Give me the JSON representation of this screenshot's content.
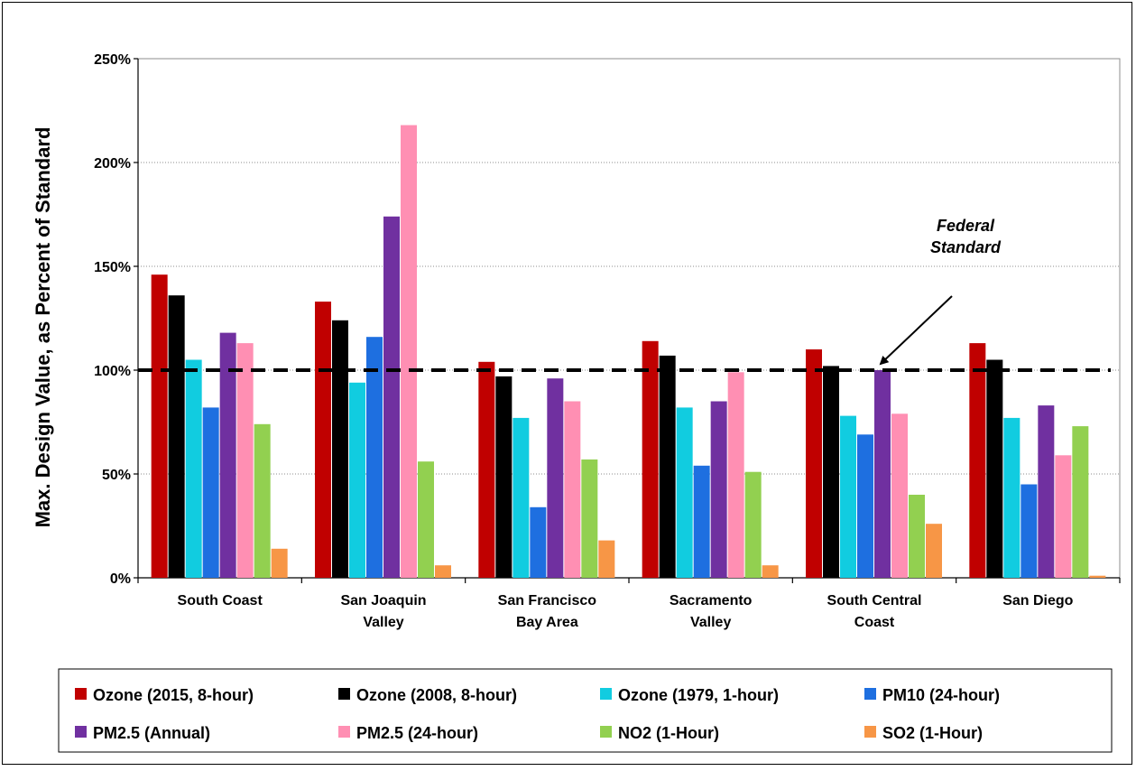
{
  "chart_data": {
    "type": "bar",
    "ylabel": "Max. Design Value, as Percent of Standard",
    "ylim": [
      0,
      250
    ],
    "yticks": [
      "0%",
      "50%",
      "100%",
      "150%",
      "200%",
      "250%"
    ],
    "ytick_values": [
      0,
      50,
      100,
      150,
      200,
      250
    ],
    "grid": true,
    "legend_position": "bottom",
    "categories": [
      [
        "South Coast"
      ],
      [
        "San Joaquin",
        "Valley"
      ],
      [
        "San Francisco",
        "Bay Area"
      ],
      [
        "Sacramento",
        "Valley"
      ],
      [
        "South Central",
        "Coast"
      ],
      [
        "San Diego"
      ]
    ],
    "series": [
      {
        "name": "Ozone (2015, 8-hour)",
        "color": "#C00000",
        "values": [
          146,
          133,
          104,
          114,
          110,
          113
        ]
      },
      {
        "name": "Ozone (2008, 8-hour)",
        "color": "#000000",
        "values": [
          136,
          124,
          97,
          107,
          102,
          105
        ]
      },
      {
        "name": "Ozone (1979, 1-hour)",
        "color": "#11CCE0",
        "values": [
          105,
          94,
          77,
          82,
          78,
          77
        ]
      },
      {
        "name": "PM10 (24-hour)",
        "color": "#1E6FE0",
        "values": [
          82,
          116,
          34,
          54,
          69,
          45
        ]
      },
      {
        "name": "PM2.5 (Annual)",
        "color": "#7030A0",
        "values": [
          118,
          174,
          96,
          85,
          100,
          83
        ]
      },
      {
        "name": "PM2.5 (24-hour)",
        "color": "#FF8FB3",
        "values": [
          113,
          218,
          85,
          99,
          79,
          59
        ]
      },
      {
        "name": "NO2 (1-Hour)",
        "color": "#92D050",
        "values": [
          74,
          56,
          57,
          51,
          40,
          73
        ]
      },
      {
        "name": "SO2 (1-Hour)",
        "color": "#F79646",
        "values": [
          14,
          6,
          18,
          6,
          26,
          1
        ]
      }
    ],
    "reference_line": {
      "value": 100,
      "label": [
        "Federal",
        "Standard"
      ]
    }
  }
}
